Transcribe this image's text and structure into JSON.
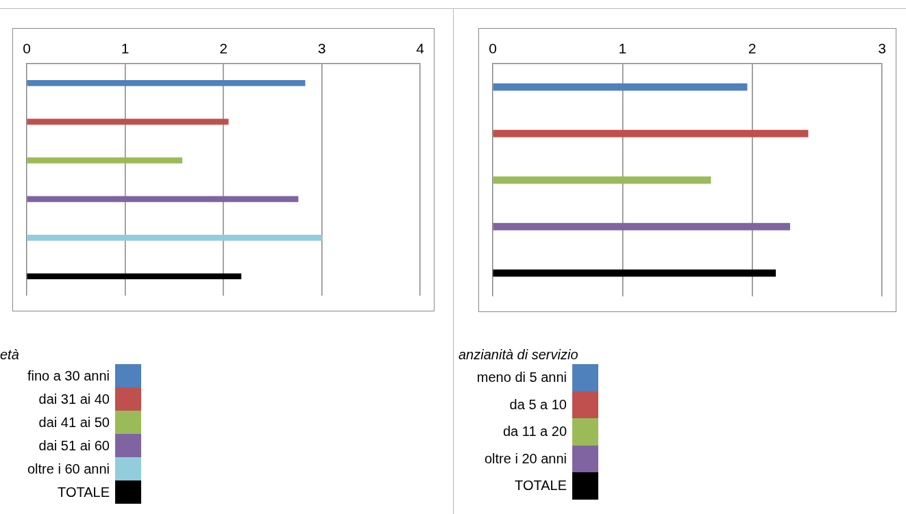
{
  "chart_data": [
    {
      "type": "bar",
      "orientation": "horizontal",
      "legend_title": "età",
      "categories": [
        null,
        null,
        null,
        null,
        null,
        null
      ],
      "xlim": [
        0,
        4
      ],
      "xticks": [
        0,
        1,
        2,
        3,
        4
      ],
      "grid": "x",
      "legend": "bottom",
      "tick_labels": "x",
      "series": [
        {
          "name": "fino a 30 anni",
          "color": "#4f81bd",
          "values": [
            2.83,
            null,
            null,
            null,
            null,
            null
          ]
        },
        {
          "name": "dai 31 ai 40",
          "color": "#c0504d",
          "values": [
            null,
            2.05,
            null,
            null,
            null,
            null
          ]
        },
        {
          "name": "dai 41 ai 50",
          "color": "#9bbb59",
          "values": [
            null,
            null,
            1.58,
            null,
            null,
            null
          ]
        },
        {
          "name": "dai 51 ai 60",
          "color": "#8064a2",
          "values": [
            null,
            null,
            null,
            2.76,
            null,
            null
          ]
        },
        {
          "name": "oltre i 60 anni",
          "color": "#92cddc",
          "values": [
            null,
            null,
            null,
            null,
            3.0,
            null
          ]
        },
        {
          "name": "TOTALE",
          "color": "#000000",
          "values": [
            null,
            null,
            null,
            null,
            null,
            2.18
          ]
        }
      ]
    },
    {
      "type": "bar",
      "orientation": "horizontal",
      "legend_title": "anzianità di servizio",
      "categories": [
        null,
        null,
        null,
        null,
        null
      ],
      "xlim": [
        0,
        3
      ],
      "xticks": [
        0,
        1,
        2,
        3
      ],
      "grid": "x",
      "legend": "bottom",
      "tick_labels": "x",
      "series": [
        {
          "name": "meno di 5 anni",
          "color": "#4f81bd",
          "values": [
            1.96,
            null,
            null,
            null,
            null
          ]
        },
        {
          "name": "da 5 a 10",
          "color": "#c0504d",
          "values": [
            null,
            2.43,
            null,
            null,
            null
          ]
        },
        {
          "name": "da 11 a 20",
          "color": "#9bbb59",
          "values": [
            null,
            null,
            1.68,
            null,
            null
          ]
        },
        {
          "name": "oltre i 20 anni",
          "color": "#8064a2",
          "values": [
            null,
            null,
            null,
            2.29,
            null
          ]
        },
        {
          "name": "TOTALE",
          "color": "#000000",
          "values": [
            null,
            null,
            null,
            null,
            2.18
          ]
        }
      ]
    }
  ]
}
